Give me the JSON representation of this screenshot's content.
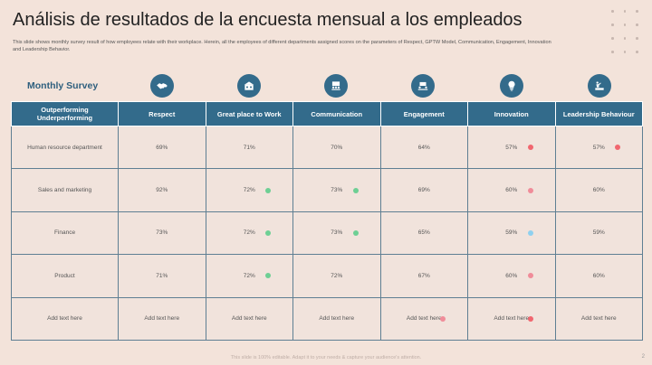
{
  "slide": {
    "title": "Análisis de resultados de la encuesta mensual a los empleados",
    "subtitle": "This slide shows monthly survey result of how employees relate with their workplace. Herein, all the employees of different departments assigned scores on the parameters of Respect, GPTW Model, Communication, Engagement, Innovation and Leadership Behavior.",
    "survey_label": "Monthly Survey",
    "footer": "This slide is 100% editable. Adapt it to your needs & capture your audience's attention.",
    "page_number": "2"
  },
  "colors": {
    "header": "#336b8b",
    "green": "#6ecf94",
    "red": "#f1666f",
    "pink": "#f08c99",
    "blue": "#8fd0ef"
  },
  "table": {
    "corner_header": "Outperforming\nUnderperforming",
    "columns": [
      {
        "label": "Respect",
        "icon": "handshake-icon"
      },
      {
        "label": "Great place to Work",
        "icon": "office-building-icon"
      },
      {
        "label": "Communication",
        "icon": "meeting-icon"
      },
      {
        "label": "Engagement",
        "icon": "team-collaboration-icon"
      },
      {
        "label": "Innovation",
        "icon": "lightbulb-icon"
      },
      {
        "label": "Leadership Behaviour",
        "icon": "leader-podium-icon"
      }
    ],
    "rows": [
      {
        "label": "Human resource department",
        "cells": [
          {
            "value": "69%",
            "dot": null
          },
          {
            "value": "71%",
            "dot": null
          },
          {
            "value": "70%",
            "dot": null
          },
          {
            "value": "64%",
            "dot": null
          },
          {
            "value": "57%",
            "dot": "red"
          },
          {
            "value": "57%",
            "dot": "red"
          }
        ]
      },
      {
        "label": "Sales and marketing",
        "cells": [
          {
            "value": "92%",
            "dot": null
          },
          {
            "value": "72%",
            "dot": "green"
          },
          {
            "value": "73%",
            "dot": "green"
          },
          {
            "value": "69%",
            "dot": null
          },
          {
            "value": "60%",
            "dot": "pink"
          },
          {
            "value": "60%",
            "dot": null
          }
        ]
      },
      {
        "label": "Finance",
        "cells": [
          {
            "value": "73%",
            "dot": null
          },
          {
            "value": "72%",
            "dot": "green"
          },
          {
            "value": "73%",
            "dot": "green"
          },
          {
            "value": "65%",
            "dot": null
          },
          {
            "value": "59%",
            "dot": "blue"
          },
          {
            "value": "59%",
            "dot": null
          }
        ]
      },
      {
        "label": "Product",
        "cells": [
          {
            "value": "71%",
            "dot": null
          },
          {
            "value": "72%",
            "dot": "green"
          },
          {
            "value": "72%",
            "dot": null
          },
          {
            "value": "67%",
            "dot": null
          },
          {
            "value": "60%",
            "dot": "pink"
          },
          {
            "value": "60%",
            "dot": null
          }
        ]
      },
      {
        "label": "Add text here",
        "cells": [
          {
            "value": "Add text here",
            "dot": null
          },
          {
            "value": "Add text here",
            "dot": null
          },
          {
            "value": "Add text here",
            "dot": null
          },
          {
            "value": "Add text here",
            "dot": "pink"
          },
          {
            "value": "Add text here",
            "dot": "red"
          },
          {
            "value": "Add text here",
            "dot": null
          }
        ]
      }
    ]
  }
}
